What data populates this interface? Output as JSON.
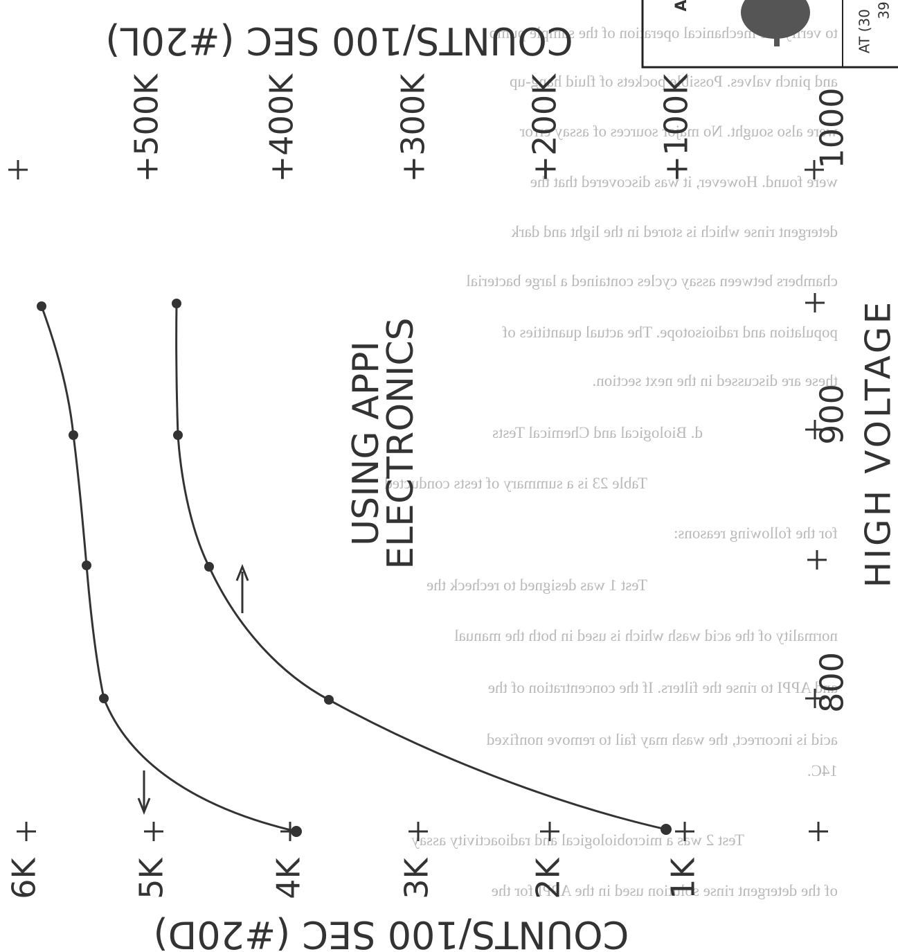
{
  "handwritten": {
    "top_axis_label": "COUNTS/100 SEC (#20L)",
    "top_ticks": [
      "+500K",
      "+400K",
      "+300K",
      "+200K",
      "+100K"
    ],
    "bottom_axis_label": "COUNTS/100 SEC (#20D)",
    "bottom_ticks": [
      "6K",
      "5K",
      "4K",
      "3K",
      "2K",
      "1K"
    ],
    "right_axis_label": "HIGH VOLTAGE",
    "right_ticks": [
      "1000",
      "900",
      "800"
    ],
    "curve_label": [
      "USING APPI",
      "ELECTRONICS"
    ]
  },
  "stamp": {
    "lines": [
      "A",
      "AT (30",
      "39"
    ]
  },
  "mirrored_text": {
    "lines": [
      "to verify the mechanical operation of the sample pump",
      "and pinch valves.  Possible pockets of fluid hang-up",
      "were also sought.  No major sources of assay error",
      "were found.  However, it was discovered that the",
      "detergent rinse which is stored in the light and dark",
      "chambers between assay cycles contained a large bacterial",
      "population and radioisotope.  The actual quantities of",
      "these are discussed in the next section.",
      "d.   Biological and Chemical Tests",
      "Table 23 is a summary of tests conducted",
      "for the following reasons:",
      "Test 1 was designed to recheck the",
      "normality of the acid wash which is used in both the manual",
      "and APPI to rinse the filters.  If the concentration of the",
      "acid is incorrect, the wash may fail to remove nonfixed",
      "14C.",
      "Test 2 was a microbiological and radioactivity assay",
      "of the detergent rinse solution used in the APPI for the"
    ]
  }
}
